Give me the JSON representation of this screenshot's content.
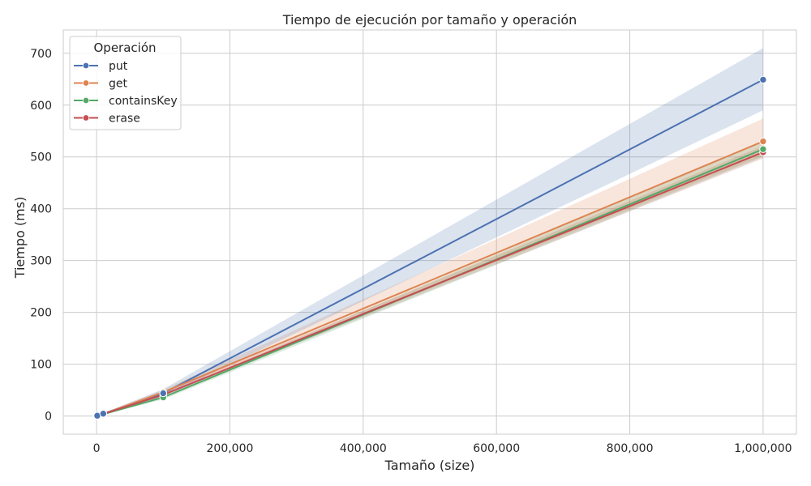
{
  "chart_data": {
    "type": "line",
    "title": "Tiempo de ejecución por tamaño y operación",
    "xlabel": "Tamaño (size)",
    "ylabel": "Tiempo (ms)",
    "xlim": [
      -50000,
      1050000
    ],
    "ylim": [
      -35,
      745
    ],
    "xticks": [
      0,
      200000,
      400000,
      600000,
      800000,
      1000000
    ],
    "xtick_labels": [
      "0",
      "200,000",
      "400,000",
      "600,000",
      "800,000",
      "1,000,000"
    ],
    "yticks": [
      0,
      100,
      200,
      300,
      400,
      500,
      600,
      700
    ],
    "ytick_labels": [
      "0",
      "100",
      "200",
      "300",
      "400",
      "500",
      "600",
      "700"
    ],
    "grid": true,
    "legend": {
      "title": "Operación",
      "placement": "top-left"
    },
    "x": [
      100,
      1000,
      10000,
      100000,
      1000000
    ],
    "series": [
      {
        "name": "put",
        "color": "#4c72b0",
        "values": [
          0.1,
          0.6,
          4.5,
          44,
          649
        ],
        "ci_low": [
          0.05,
          0.4,
          3.5,
          38,
          590
        ],
        "ci_high": [
          0.2,
          0.9,
          6,
          52,
          710
        ]
      },
      {
        "name": "get",
        "color": "#dd8452",
        "values": [
          0.1,
          0.5,
          4,
          46,
          530
        ],
        "ci_low": [
          0.05,
          0.3,
          3,
          40,
          502
        ],
        "ci_high": [
          0.2,
          0.8,
          5,
          51,
          574
        ]
      },
      {
        "name": "containsKey",
        "color": "#55a868",
        "values": [
          0.1,
          0.5,
          3.5,
          36,
          515
        ],
        "ci_low": [
          0.05,
          0.3,
          2.5,
          32,
          500
        ],
        "ci_high": [
          0.2,
          0.8,
          4.5,
          40,
          530
        ]
      },
      {
        "name": "erase",
        "color": "#c44e52",
        "values": [
          0.1,
          0.5,
          4,
          41,
          509
        ],
        "ci_low": [
          0.05,
          0.3,
          3,
          37,
          497
        ],
        "ci_high": [
          0.2,
          0.8,
          5,
          45,
          521
        ]
      }
    ]
  }
}
